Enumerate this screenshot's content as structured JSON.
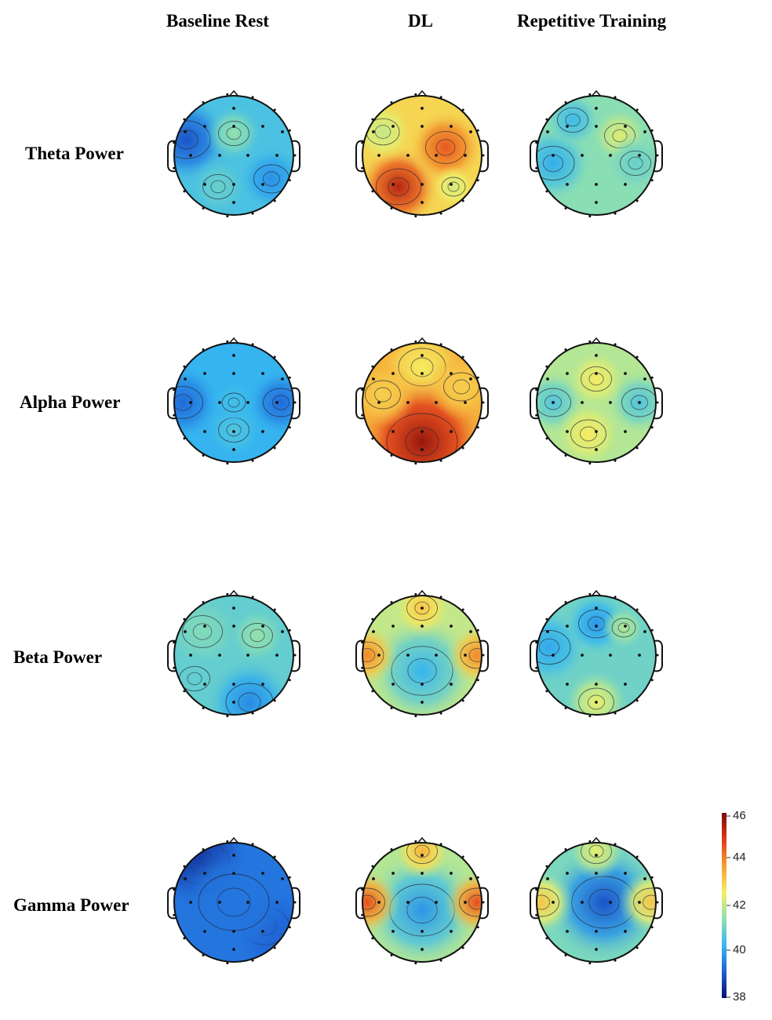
{
  "columns": [
    "Baseline Rest",
    "DL",
    "Repetitive Training"
  ],
  "rows": [
    "Theta Power",
    "Alpha Power",
    "Beta Power",
    "Gamma Power"
  ],
  "colorbar": {
    "ticks": [
      "46",
      "44",
      "42",
      "40",
      "38"
    ],
    "min": 38,
    "max": 46,
    "colors": [
      "#0a1070",
      "#1e5fd8",
      "#36b8f0",
      "#8ee0b0",
      "#f5f064",
      "#f6a030",
      "#e03a1a",
      "#7a0a08"
    ]
  },
  "topomaps": [
    {
      "row": 0,
      "col": 0,
      "level": 0.32
    },
    {
      "row": 0,
      "col": 1,
      "level": 0.62
    },
    {
      "row": 0,
      "col": 2,
      "level": 0.42
    },
    {
      "row": 1,
      "col": 0,
      "level": 0.28
    },
    {
      "row": 1,
      "col": 1,
      "level": 0.68
    },
    {
      "row": 1,
      "col": 2,
      "level": 0.48
    },
    {
      "row": 2,
      "col": 0,
      "level": 0.36
    },
    {
      "row": 2,
      "col": 1,
      "level": 0.5
    },
    {
      "row": 2,
      "col": 2,
      "level": 0.38
    },
    {
      "row": 3,
      "col": 0,
      "level": 0.18
    },
    {
      "row": 3,
      "col": 1,
      "level": 0.48
    },
    {
      "row": 3,
      "col": 2,
      "level": 0.4
    }
  ]
}
